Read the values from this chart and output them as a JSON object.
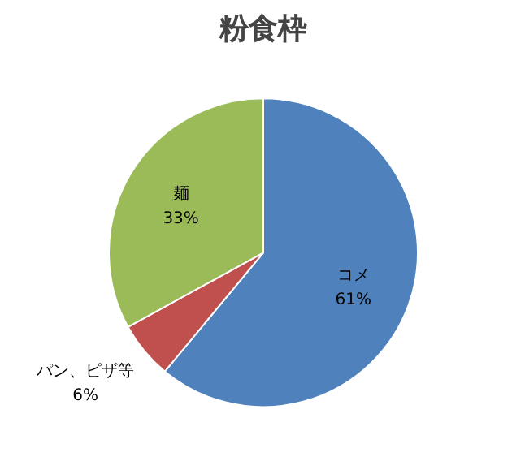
{
  "chart_data": {
    "type": "pie",
    "title": "粉食枠",
    "categories": [
      "コメ",
      "パン、ピザ等",
      "麺"
    ],
    "values": [
      61,
      6,
      33
    ],
    "value_labels": [
      "61%",
      "6%",
      "33%"
    ],
    "colors": [
      "#4f81bd",
      "#c0504d",
      "#9bbb59"
    ]
  }
}
